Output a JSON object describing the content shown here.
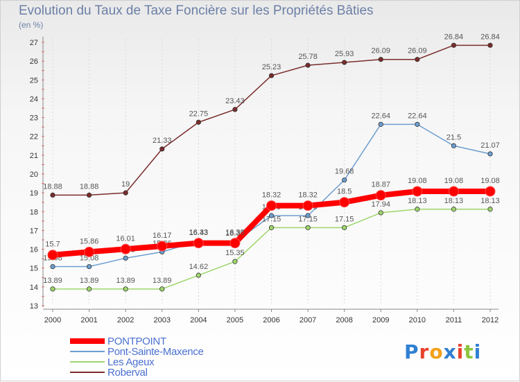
{
  "title": "Evolution du Taux de Taxe Foncière sur les Propriétés Bâties",
  "unit_label": "(en %)",
  "logo_text": "Proxiti",
  "chart_data": {
    "type": "line",
    "title": "Evolution du Taux de Taxe Foncière sur les Propriétés Bâties",
    "ylabel": "(en %)",
    "xlabel": "",
    "x": [
      "2000",
      "2001",
      "2002",
      "2003",
      "2004",
      "2005",
      "2006",
      "2007",
      "2008",
      "2009",
      "2010",
      "2011",
      "2012"
    ],
    "ylim": [
      13,
      27
    ],
    "yticks": [
      13,
      14,
      15,
      16,
      17,
      18,
      19,
      20,
      21,
      22,
      23,
      24,
      25,
      26,
      27
    ],
    "grid": "vertical-dashed",
    "series": [
      {
        "name": "Roberval",
        "color": "#7a2b2b",
        "values": [
          18.88,
          18.88,
          19,
          21.33,
          22.75,
          23.43,
          25.23,
          25.78,
          25.93,
          26.09,
          26.09,
          26.84,
          26.84
        ],
        "labels": [
          "18.88",
          "18.88",
          "19",
          "21.33",
          "22.75",
          "23.43",
          "25.23",
          "25.78",
          "25.93",
          "26.09",
          "26.09",
          "26.84",
          "26.84"
        ]
      },
      {
        "name": "Pont-Sainte-Maxence",
        "color": "#6d9ecf",
        "values": [
          15.08,
          15.08,
          15.53,
          15.86,
          16.43,
          16.39,
          17.79,
          17.79,
          19.68,
          22.64,
          22.64,
          21.5,
          21.07
        ],
        "labels": [
          "15.08",
          "15.08",
          "15.53",
          "15.86",
          "16.43",
          "16.39",
          "17.79",
          "17.79",
          "19.68",
          "22.64",
          "22.64",
          "21.5",
          "21.07"
        ]
      },
      {
        "name": "Les Ageux",
        "color": "#9ed66a",
        "values": [
          13.89,
          13.89,
          13.89,
          13.89,
          14.62,
          15.35,
          17.15,
          17.15,
          17.15,
          17.94,
          18.13,
          18.13,
          18.13
        ],
        "labels": [
          "13.89",
          "13.89",
          "13.89",
          "13.89",
          "14.62",
          "15.35",
          "17.15",
          "17.15",
          "17.15",
          "17.94",
          "18.13",
          "18.13",
          "18.13"
        ]
      },
      {
        "name": "PONTPOINT",
        "color": "#ff0000",
        "values": [
          15.7,
          15.86,
          16.01,
          16.17,
          16.33,
          16.33,
          18.32,
          18.32,
          18.5,
          18.87,
          19.08,
          19.08,
          19.08
        ],
        "labels": [
          "15.7",
          "15.86",
          "16.01",
          "16.17",
          "16.33",
          "16.33",
          "18.32",
          "18.32",
          "18.5",
          "18.87",
          "19.08",
          "19.08",
          "19.08"
        ]
      }
    ],
    "legend": {
      "placement": "bottom-left",
      "order": [
        "PONTPOINT",
        "Pont-Sainte-Maxence",
        "Les Ageux",
        "Roberval"
      ]
    }
  }
}
